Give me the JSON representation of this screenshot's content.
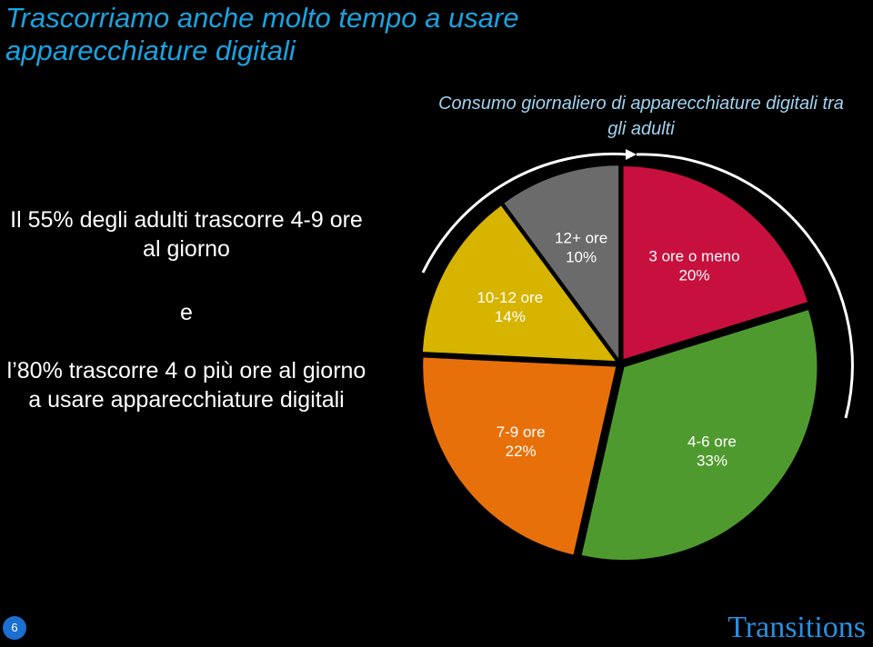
{
  "slide_title": "Trascorriamo anche molto tempo a usare apparecchiature digitali",
  "text_1": "Il 55% degli adulti trascorre 4-9 ore al giorno",
  "text_2": "e",
  "text_3": "l’80% trascorre 4 o più ore al giorno a usare apparecchiature digitali",
  "page_number": "6",
  "logo": "Transitions",
  "chart_data": {
    "type": "pie",
    "title": "Consumo giornaliero di apparecchiature digitali tra gli adulti",
    "categories": [
      "3 ore o meno",
      "4-6 ore",
      "7-9 ore",
      "10-12 ore",
      "12+ ore"
    ],
    "values": [
      20,
      33,
      22,
      14,
      10
    ],
    "value_labels": [
      "20%",
      "33%",
      "22%",
      "14%",
      "10%"
    ],
    "colors": [
      "#c8103e",
      "#4f9a2e",
      "#e8700a",
      "#d6b400",
      "#6b6b6b"
    ]
  }
}
